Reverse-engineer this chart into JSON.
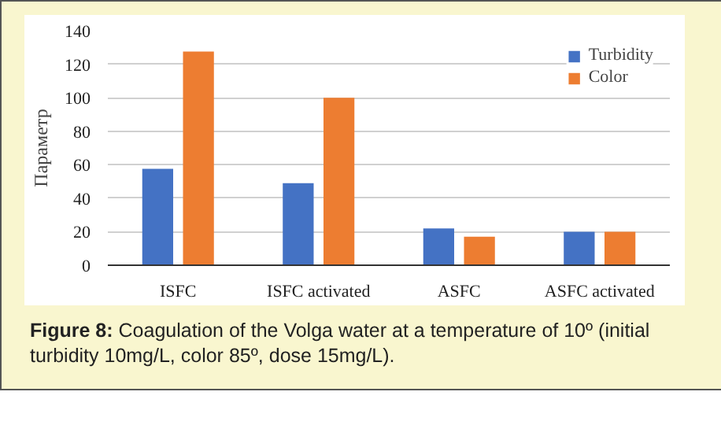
{
  "chart_data": {
    "type": "bar",
    "ylabel": "Параметр",
    "categories": [
      "ISFC",
      "ISFC activated",
      "ASFC",
      "ASFC activated"
    ],
    "series": [
      {
        "name": "Turbidity",
        "color": "#4472c4",
        "values": [
          57.5,
          49,
          22,
          20
        ]
      },
      {
        "name": "Color",
        "color": "#ed7d31",
        "values": [
          127.5,
          100,
          17,
          20
        ]
      }
    ],
    "ylim": [
      0,
      140
    ],
    "yticks": [
      0,
      20,
      40,
      60,
      80,
      100,
      120,
      140
    ],
    "grid": "y",
    "legend": "top right",
    "annotations": [
      "Figure 8: Coagulation of the Volga water at a temperature of 10º (initial turbidity 10mg/L, color 85º, dose 15mg/L)."
    ]
  }
}
